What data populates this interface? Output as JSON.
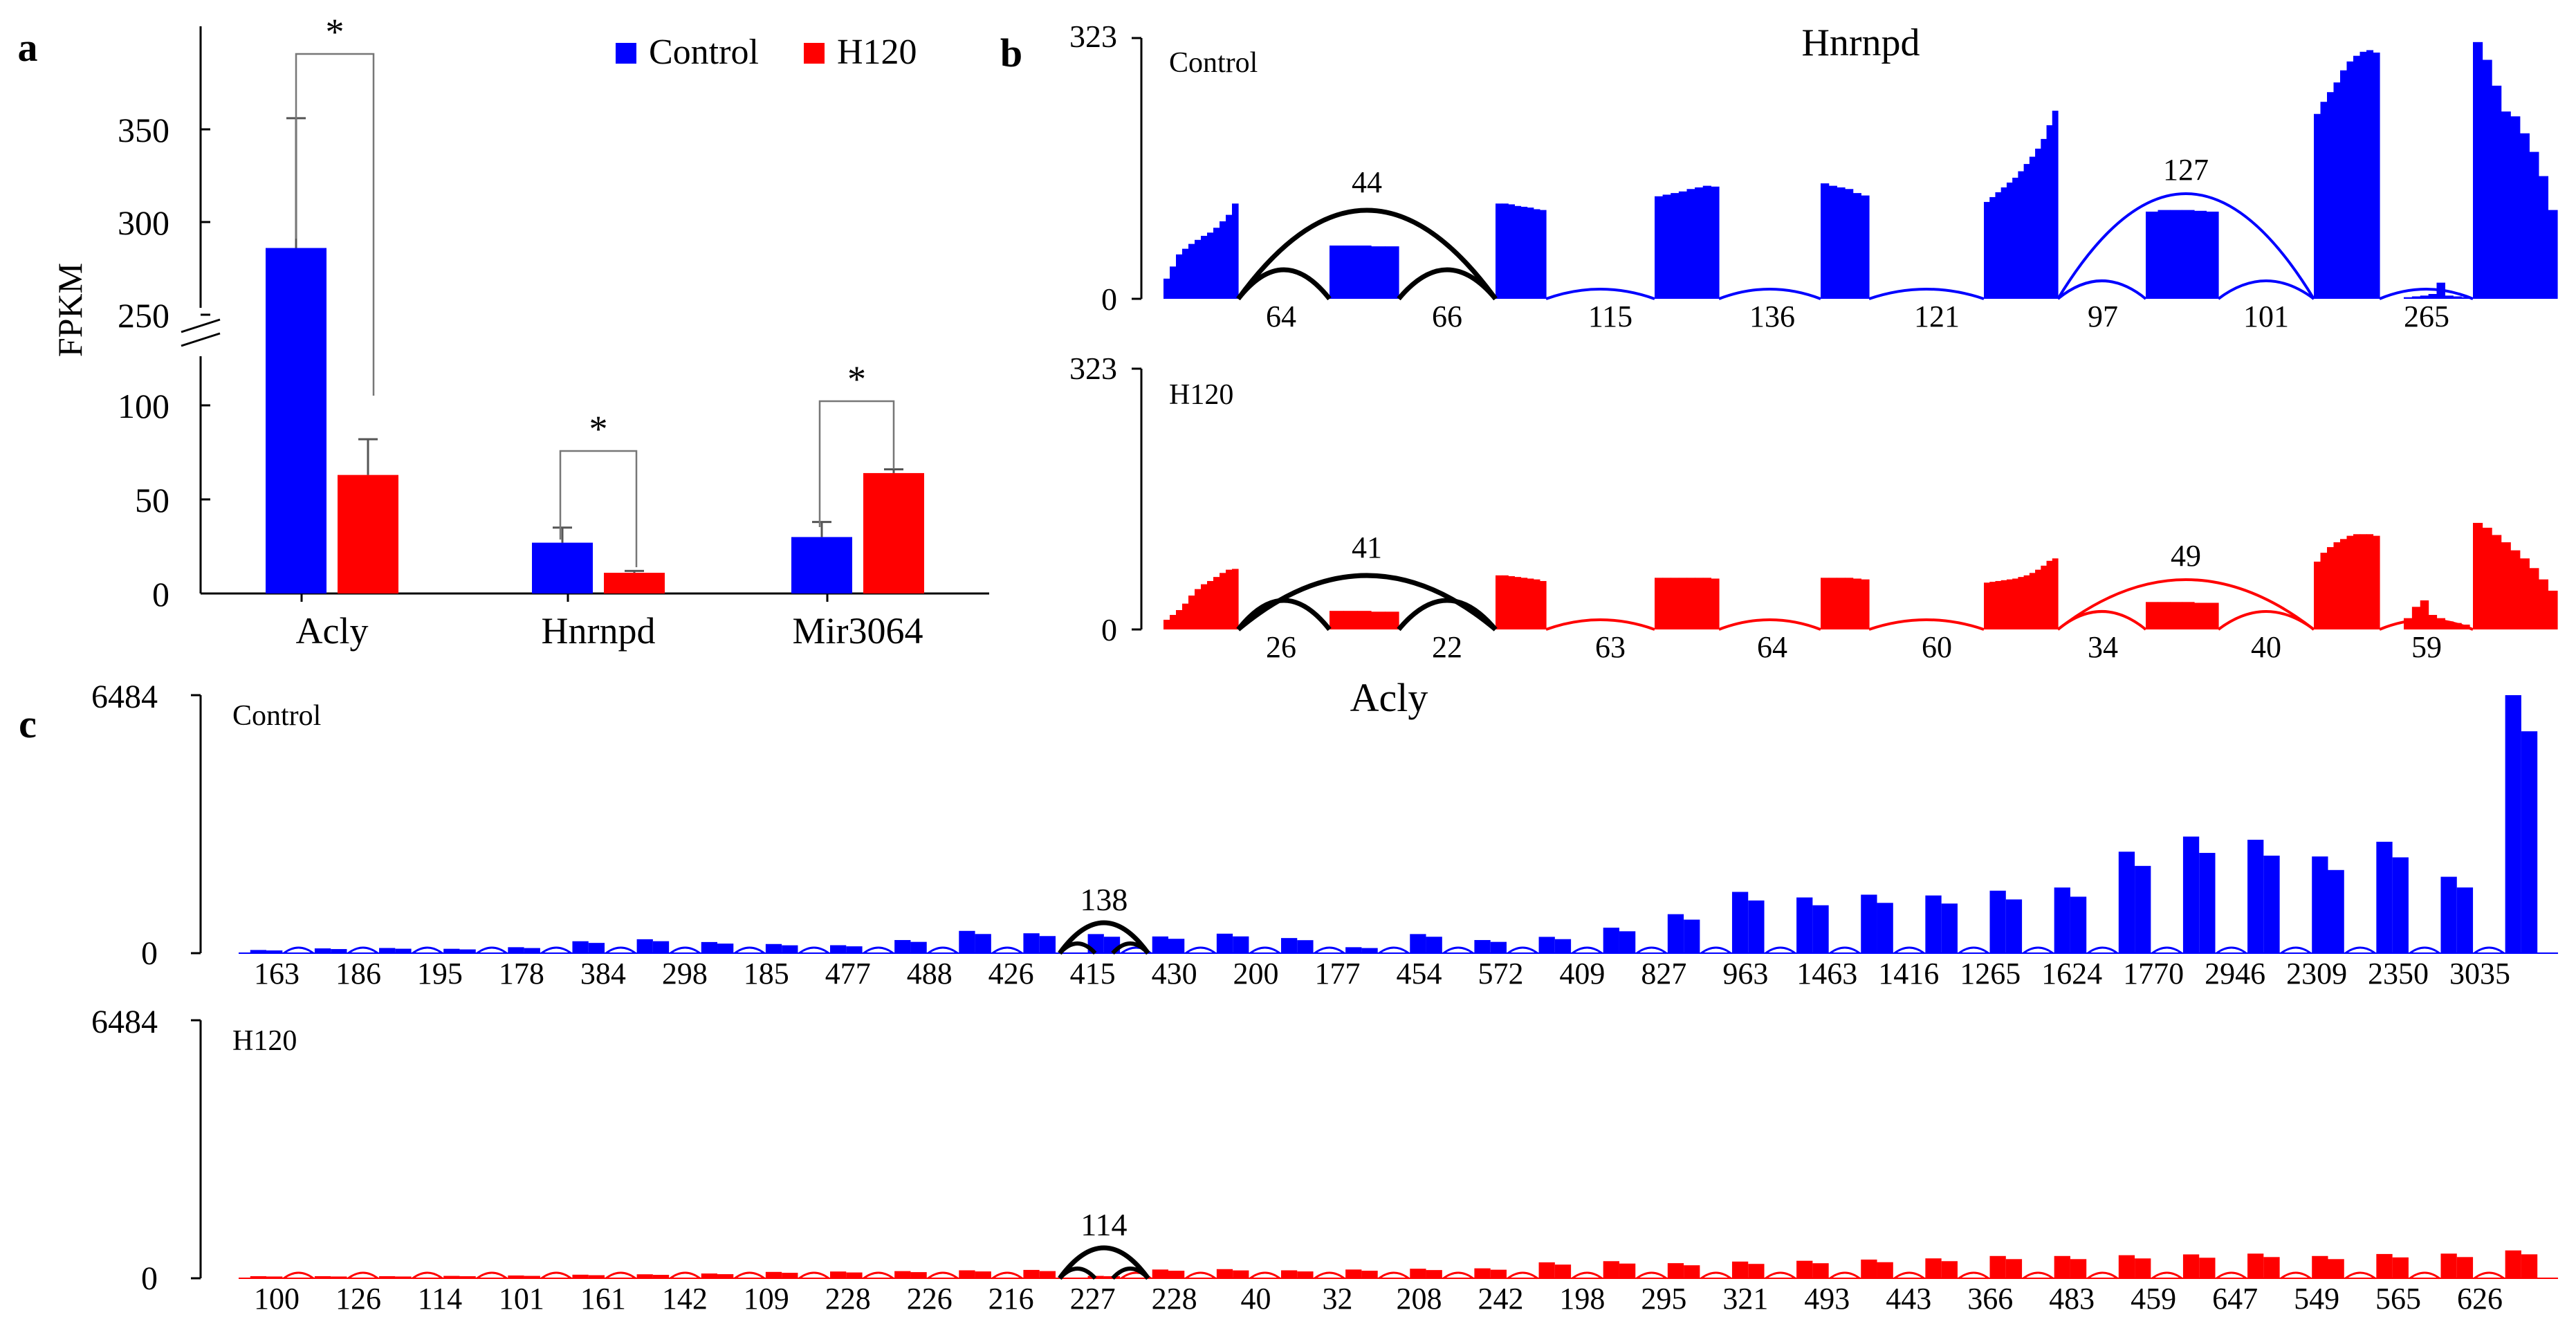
{
  "colors": {
    "control": "#0000ff",
    "h120": "#ff0000",
    "junction": "#000000",
    "axis": "#000000"
  },
  "panel_labels": {
    "a": "a",
    "b": "b",
    "c": "c"
  },
  "chart_data": [
    {
      "panel": "a",
      "type": "bar",
      "title": "",
      "ylabel": "FPKM",
      "xlabel": "",
      "categories": [
        "Acly",
        "Hnrnpd",
        "Mir3064"
      ],
      "series": [
        {
          "name": "Control",
          "values": [
            286,
            27,
            30
          ],
          "errors": [
            70,
            8,
            8
          ]
        },
        {
          "name": "H120",
          "values": [
            63,
            11,
            64
          ],
          "errors": [
            19,
            1,
            2
          ]
        }
      ],
      "y_axis_break": {
        "lower_range": [
          0,
          120
        ],
        "upper_range": [
          230,
          400
        ]
      },
      "yticks": [
        "0",
        "50",
        "100",
        "250",
        "300",
        "350"
      ],
      "significance": [
        "*",
        "*",
        "*"
      ],
      "legend_position": "top-right"
    },
    {
      "panel": "b",
      "type": "sashimi",
      "title": "Hnrnpd",
      "ymax_label": "323",
      "ymin_label": "0",
      "tracks": [
        {
          "name": "Control",
          "ymax": 323,
          "exon_coverage": [
            [
              25,
              40,
              55,
              62,
              68,
              73,
              78,
              82,
              88,
              96,
              104,
              118
            ],
            [
              66,
              66,
              66,
              65,
              65
            ],
            [
              118,
              118,
              117,
              115,
              114,
              113,
              111,
              110
            ],
            [
              127,
              129,
              131,
              133,
              136,
              138,
              140,
              139
            ],
            [
              143,
              140,
              138,
              136,
              131,
              128
            ],
            [
              120,
              126,
              132,
              138,
              144,
              150,
              158,
              167,
              176,
              186,
              198,
              215,
              233
            ],
            [
              108,
              110,
              110,
              110,
              109,
              108
            ],
            [
              229,
              244,
              256,
              268,
              283,
              294,
              301,
              306,
              308,
              305
            ],
            [
              2,
              3,
              4,
              6,
              20,
              4,
              3,
              2
            ],
            [
              318,
              296,
              264,
              232,
              226,
              205,
              182,
              152,
              110
            ]
          ],
          "junctions_long": [
            44,
            127
          ],
          "junctions_short": [
            64,
            66,
            115,
            136,
            121,
            97,
            101,
            265
          ]
        },
        {
          "name": "H120",
          "ymax": 323,
          "exon_coverage": [
            [
              12,
              18,
              24,
              32,
              42,
              50,
              56,
              60,
              65,
              70,
              74,
              75
            ],
            [
              23,
              23,
              23,
              22,
              22
            ],
            [
              67,
              67,
              66,
              65,
              64,
              63,
              62,
              60
            ],
            [
              64,
              64,
              64,
              64,
              64,
              64,
              64,
              63
            ],
            [
              64,
              64,
              64,
              64,
              63,
              62
            ],
            [
              58,
              59,
              60,
              61,
              62,
              63,
              65,
              67,
              70,
              74,
              79,
              85,
              88
            ],
            [
              34,
              34,
              34,
              34,
              33,
              33
            ],
            [
              84,
              95,
              102,
              108,
              112,
              116,
              118,
              118,
              118,
              116
            ],
            [
              14,
              28,
              36,
              18,
              14,
              10,
              8,
              6
            ],
            [
              132,
              126,
              117,
              108,
              98,
              88,
              76,
              62,
              48
            ]
          ],
          "junctions_long": [
            41,
            49
          ],
          "junctions_short": [
            26,
            22,
            63,
            64,
            60,
            34,
            40,
            59
          ]
        }
      ]
    },
    {
      "panel": "c",
      "type": "sashimi",
      "title": "Acly",
      "ymax_label": "6484",
      "ymin_label": "0",
      "tracks": [
        {
          "name": "Control",
          "ymax": 6484,
          "exon_coverage": [
            80,
            120,
            130,
            110,
            150,
            300,
            350,
            280,
            230,
            200,
            330,
            560,
            500,
            480,
            420,
            490,
            380,
            150,
            480,
            330,
            410,
            640,
            980,
            1540,
            1400,
            1470,
            1450,
            1570,
            1650,
            2550,
            2930,
            2850,
            2430,
            2800,
            1920,
            6484
          ],
          "junction_labels": [
            "163",
            "186",
            "195",
            "178",
            "384",
            "298",
            "185",
            "477",
            "488",
            "426",
            "415",
            "430",
            "200",
            "177",
            "454",
            "572",
            "409",
            "827",
            "963",
            "1463",
            "1416",
            "1265",
            "1624",
            "1770",
            "2946",
            "2309",
            "2350",
            "3035"
          ],
          "skip_junction": 138
        },
        {
          "name": "H120",
          "ymax": 6484,
          "exon_coverage": [
            40,
            50,
            45,
            60,
            70,
            90,
            100,
            120,
            160,
            170,
            180,
            200,
            210,
            60,
            220,
            230,
            200,
            220,
            240,
            250,
            400,
            430,
            380,
            420,
            440,
            470,
            500,
            560,
            560,
            580,
            600,
            620,
            560,
            610,
            620,
            700
          ],
          "junction_labels": [
            "100",
            "126",
            "114",
            "101",
            "161",
            "142",
            "109",
            "228",
            "226",
            "216",
            "227",
            "228",
            "40",
            "32",
            "208",
            "242",
            "198",
            "295",
            "321",
            "493",
            "443",
            "366",
            "483",
            "459",
            "647",
            "549",
            "565",
            "626"
          ],
          "skip_junction": 114
        }
      ]
    }
  ]
}
